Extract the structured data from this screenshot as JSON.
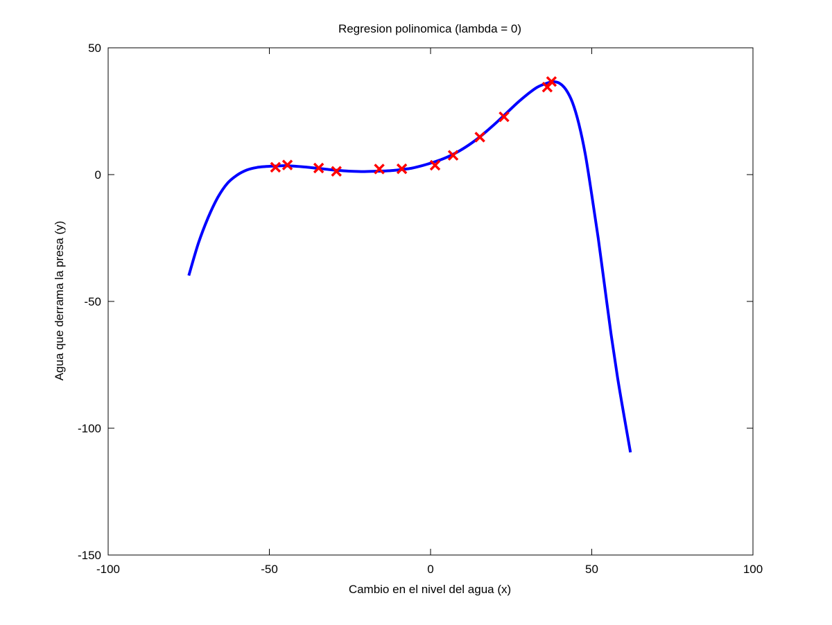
{
  "chart_data": {
    "type": "line",
    "title": "Regresion polinomica (lambda = 0)",
    "xlabel": "Cambio en el nivel del agua (x)",
    "ylabel": "Agua que derrama la presa (y)",
    "xlim": [
      -100,
      100
    ],
    "ylim": [
      -150,
      50
    ],
    "xticks": [
      -100,
      -50,
      0,
      50,
      100
    ],
    "yticks": [
      -150,
      -100,
      -50,
      0,
      50
    ],
    "xtick_labels": [
      "-100",
      "-50",
      "0",
      "50",
      "100"
    ],
    "ytick_labels": [
      "-150",
      "-100",
      "-50",
      "0",
      "50"
    ],
    "grid": false,
    "legend": "none",
    "series": [
      {
        "kind": "line",
        "color": "#0000ff",
        "x": [
          -75,
          -72,
          -69,
          -66,
          -63,
          -60,
          -57,
          -54,
          -51,
          -48,
          -45,
          -42,
          -39,
          -36,
          -33,
          -30,
          -27,
          -24,
          -21,
          -18,
          -15,
          -12,
          -9,
          -6,
          -3,
          0,
          3,
          6,
          9,
          12,
          15,
          18,
          21,
          24,
          27,
          30,
          33,
          36,
          38,
          40,
          42,
          44,
          46,
          48,
          50,
          52,
          54,
          56,
          58,
          60,
          62
        ],
        "y": [
          -39.8,
          -27.0,
          -17.0,
          -9.0,
          -3.4,
          -0.2,
          1.8,
          2.8,
          3.2,
          3.4,
          3.5,
          3.3,
          3.0,
          2.6,
          2.2,
          1.8,
          1.5,
          1.3,
          1.2,
          1.3,
          1.4,
          1.6,
          2.0,
          2.5,
          3.4,
          4.5,
          5.8,
          7.4,
          9.4,
          11.8,
          14.6,
          17.8,
          21.2,
          24.8,
          28.4,
          31.6,
          34.4,
          36.0,
          36.6,
          36.0,
          33.5,
          28.5,
          20.0,
          8.0,
          -8.0,
          -25.0,
          -44.0,
          -63.0,
          -80.0,
          -95.0,
          -109.5
        ]
      },
      {
        "kind": "scatter",
        "marker": "x",
        "color": "#ff0000",
        "x": [
          -48.1,
          -44.4,
          -34.7,
          -29.2,
          -15.9,
          -8.9,
          1.4,
          7.0,
          15.3,
          22.8,
          36.2,
          37.5
        ],
        "y": [
          2.9,
          3.8,
          2.6,
          1.3,
          2.2,
          2.3,
          3.7,
          7.6,
          14.8,
          22.8,
          34.5,
          36.7
        ]
      }
    ]
  }
}
